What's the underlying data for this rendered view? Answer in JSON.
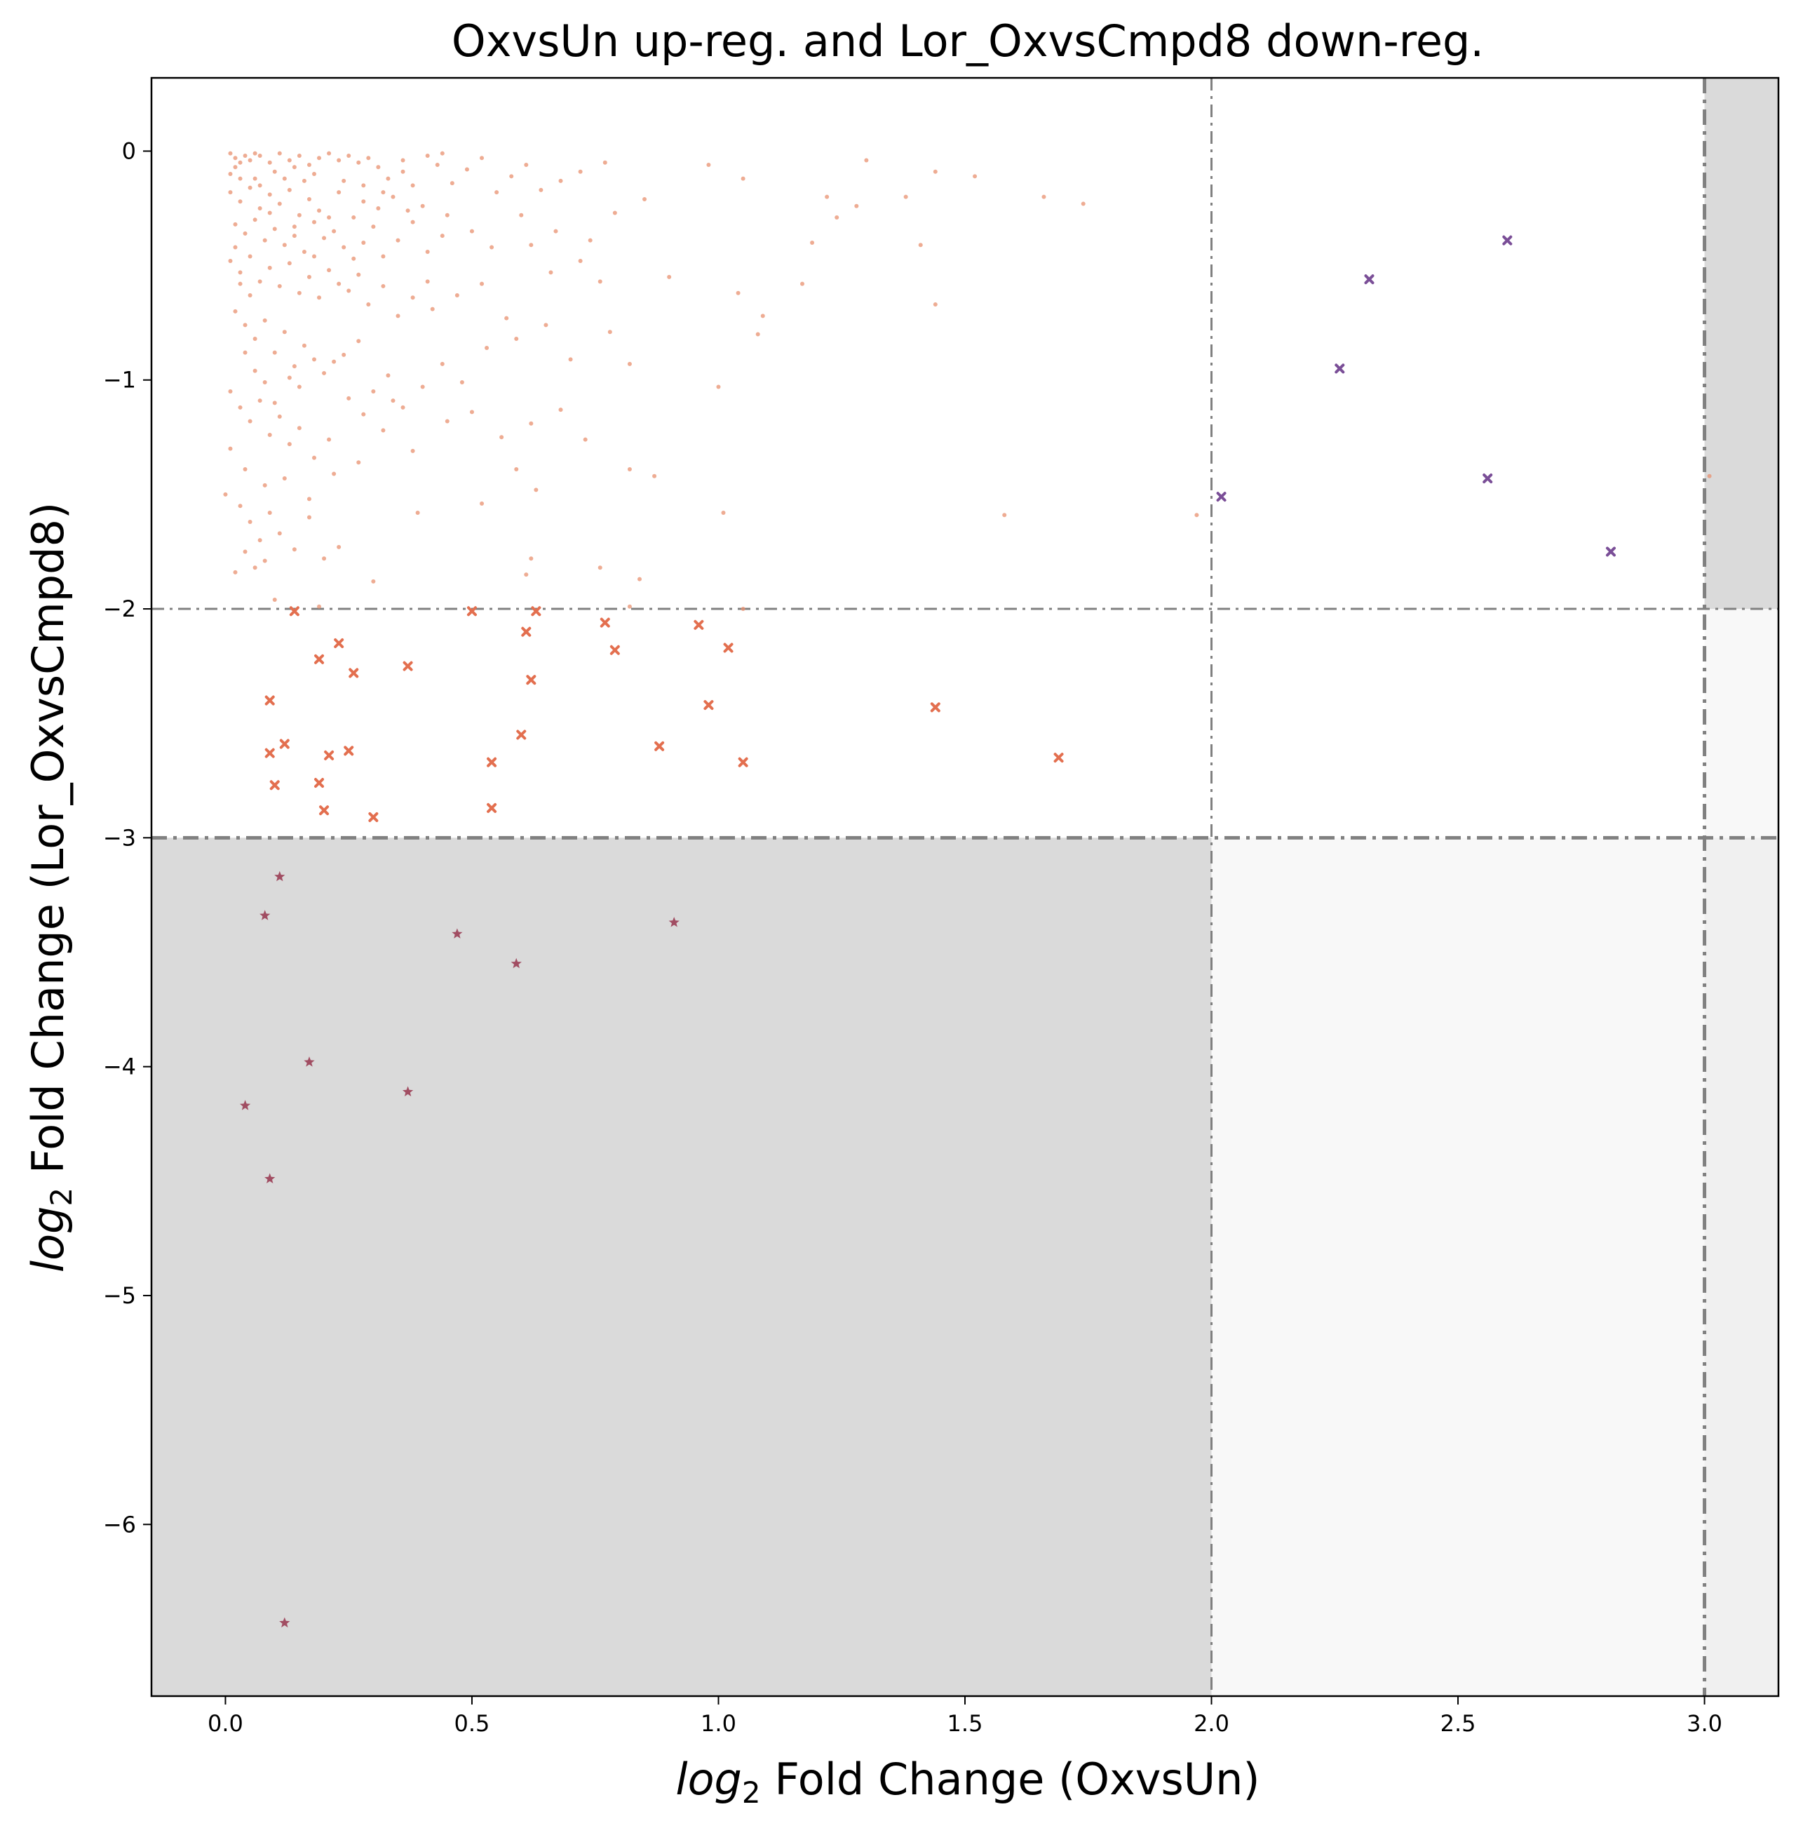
{
  "chart_data": {
    "type": "scatter",
    "title": "OxvsUn up-reg. and Lor_OxvsCmpd8 down-reg.",
    "xlabel": {
      "prefix": "log",
      "sub": "2",
      "rest": " Fold Change (OxvsUn)"
    },
    "ylabel": {
      "prefix": "log",
      "sub": "2",
      "rest": " Fold Change (Lor_OxvsCmpd8)"
    },
    "xlim": [
      -0.15,
      3.15
    ],
    "ylim": [
      -6.75,
      0.32
    ],
    "xticks": [
      0.0,
      0.5,
      1.0,
      1.5,
      2.0,
      2.5,
      3.0
    ],
    "xtick_labels": [
      "0.0",
      "0.5",
      "1.0",
      "1.5",
      "2.0",
      "2.5",
      "3.0"
    ],
    "yticks": [
      0,
      -1,
      -2,
      -3,
      -4,
      -5,
      -6
    ],
    "ytick_labels": [
      "0",
      "−1",
      "−2",
      "−3",
      "−4",
      "−5",
      "−6"
    ],
    "grid": false,
    "legend": "none",
    "thresholds": {
      "vertical": [
        {
          "x": 2.0,
          "style": "thin"
        },
        {
          "x": 3.0,
          "style": "thick"
        }
      ],
      "horizontal": [
        {
          "y": -2.0,
          "style": "thin"
        },
        {
          "y": -3.0,
          "style": "thick"
        }
      ]
    },
    "shaded_regions": [
      {
        "x": [
          -0.15,
          2.0
        ],
        "y": [
          -6.75,
          -3.0
        ],
        "color": "#dadada"
      },
      {
        "x": [
          2.0,
          3.0
        ],
        "y": [
          -6.75,
          -3.0
        ],
        "color": "#f8f8f8"
      },
      {
        "x": [
          3.0,
          3.15
        ],
        "y": [
          -6.75,
          -3.0
        ],
        "color": "#f0f0f0"
      },
      {
        "x": [
          3.0,
          3.15
        ],
        "y": [
          -3.0,
          -2.0
        ],
        "color": "#f8f8f8"
      },
      {
        "x": [
          3.0,
          3.15
        ],
        "y": [
          -2.0,
          0.32
        ],
        "color": "#dadada"
      }
    ],
    "series": [
      {
        "marker": "dot",
        "color": "#e8906f",
        "points": [
          [
            0.01,
            -0.01
          ],
          [
            0.02,
            -0.03
          ],
          [
            0.03,
            -0.05
          ],
          [
            0.04,
            -0.02
          ],
          [
            0.05,
            -0.04
          ],
          [
            0.06,
            -0.01
          ],
          [
            0.02,
            -0.07
          ],
          [
            0.01,
            -0.1
          ],
          [
            0.03,
            -0.12
          ],
          [
            0.07,
            -0.02
          ],
          [
            0.09,
            -0.05
          ],
          [
            0.11,
            -0.01
          ],
          [
            0.13,
            -0.04
          ],
          [
            0.15,
            -0.02
          ],
          [
            0.17,
            -0.06
          ],
          [
            0.19,
            -0.03
          ],
          [
            0.21,
            -0.01
          ],
          [
            0.23,
            -0.04
          ],
          [
            0.25,
            -0.02
          ],
          [
            0.27,
            -0.05
          ],
          [
            0.29,
            -0.03
          ],
          [
            0.31,
            -0.07
          ],
          [
            0.33,
            -0.12
          ],
          [
            0.36,
            -0.09
          ],
          [
            0.38,
            -0.15
          ],
          [
            0.41,
            -0.02
          ],
          [
            0.43,
            -0.06
          ],
          [
            0.46,
            -0.14
          ],
          [
            0.49,
            -0.08
          ],
          [
            0.52,
            -0.03
          ],
          [
            0.55,
            -0.18
          ],
          [
            0.58,
            -0.11
          ],
          [
            0.61,
            -0.06
          ],
          [
            0.64,
            -0.17
          ],
          [
            0.68,
            -0.13
          ],
          [
            0.72,
            -0.09
          ],
          [
            0.77,
            -0.05
          ],
          [
            0.85,
            -0.21
          ],
          [
            0.98,
            -0.06
          ],
          [
            1.05,
            -0.12
          ],
          [
            1.3,
            -0.04
          ],
          [
            1.38,
            -0.2
          ],
          [
            1.44,
            -0.09
          ],
          [
            1.52,
            -0.11
          ],
          [
            1.66,
            -0.2
          ],
          [
            1.74,
            -0.23
          ],
          [
            1.28,
            -0.24
          ],
          [
            1.22,
            -0.2
          ],
          [
            1.24,
            -0.29
          ],
          [
            1.19,
            -0.4
          ],
          [
            0.01,
            -0.18
          ],
          [
            0.03,
            -0.22
          ],
          [
            0.05,
            -0.16
          ],
          [
            0.07,
            -0.25
          ],
          [
            0.09,
            -0.19
          ],
          [
            0.11,
            -0.23
          ],
          [
            0.13,
            -0.17
          ],
          [
            0.15,
            -0.28
          ],
          [
            0.17,
            -0.21
          ],
          [
            0.19,
            -0.26
          ],
          [
            0.02,
            -0.32
          ],
          [
            0.04,
            -0.36
          ],
          [
            0.06,
            -0.3
          ],
          [
            0.08,
            -0.39
          ],
          [
            0.1,
            -0.34
          ],
          [
            0.12,
            -0.41
          ],
          [
            0.14,
            -0.37
          ],
          [
            0.16,
            -0.44
          ],
          [
            0.18,
            -0.31
          ],
          [
            0.2,
            -0.38
          ],
          [
            0.22,
            -0.35
          ],
          [
            0.24,
            -0.42
          ],
          [
            0.26,
            -0.29
          ],
          [
            0.28,
            -0.4
          ],
          [
            0.3,
            -0.33
          ],
          [
            0.32,
            -0.46
          ],
          [
            0.35,
            -0.39
          ],
          [
            0.38,
            -0.31
          ],
          [
            0.41,
            -0.44
          ],
          [
            0.44,
            -0.37
          ],
          [
            0.01,
            -0.48
          ],
          [
            0.03,
            -0.53
          ],
          [
            0.05,
            -0.46
          ],
          [
            0.07,
            -0.57
          ],
          [
            0.09,
            -0.51
          ],
          [
            0.11,
            -0.59
          ],
          [
            0.13,
            -0.49
          ],
          [
            0.15,
            -0.62
          ],
          [
            0.17,
            -0.55
          ],
          [
            0.19,
            -0.64
          ],
          [
            0.21,
            -0.52
          ],
          [
            0.23,
            -0.58
          ],
          [
            0.25,
            -0.61
          ],
          [
            0.27,
            -0.54
          ],
          [
            0.29,
            -0.67
          ],
          [
            0.32,
            -0.59
          ],
          [
            0.35,
            -0.72
          ],
          [
            0.38,
            -0.64
          ],
          [
            0.42,
            -0.69
          ],
          [
            0.47,
            -0.63
          ],
          [
            0.52,
            -0.58
          ],
          [
            0.57,
            -0.73
          ],
          [
            0.62,
            -0.41
          ],
          [
            0.66,
            -0.53
          ],
          [
            0.72,
            -0.48
          ],
          [
            0.76,
            -0.57
          ],
          [
            0.79,
            -0.27
          ],
          [
            0.9,
            -0.55
          ],
          [
            1.09,
            -0.72
          ],
          [
            1.17,
            -0.58
          ],
          [
            0.02,
            -0.7
          ],
          [
            0.04,
            -0.76
          ],
          [
            0.06,
            -0.82
          ],
          [
            0.08,
            -0.74
          ],
          [
            0.1,
            -0.88
          ],
          [
            0.12,
            -0.79
          ],
          [
            0.14,
            -0.94
          ],
          [
            0.16,
            -0.85
          ],
          [
            0.18,
            -0.91
          ],
          [
            0.2,
            -0.97
          ],
          [
            0.22,
            -0.92
          ],
          [
            0.24,
            -0.89
          ],
          [
            0.27,
            -0.83
          ],
          [
            0.3,
            -1.05
          ],
          [
            0.33,
            -0.98
          ],
          [
            0.36,
            -1.12
          ],
          [
            0.4,
            -1.03
          ],
          [
            0.44,
            -0.93
          ],
          [
            0.48,
            -1.01
          ],
          [
            0.53,
            -0.86
          ],
          [
            0.59,
            -0.82
          ],
          [
            0.65,
            -0.76
          ],
          [
            0.7,
            -0.91
          ],
          [
            0.78,
            -0.79
          ],
          [
            0.82,
            -0.93
          ],
          [
            1.0,
            -1.03
          ],
          [
            1.04,
            -0.62
          ],
          [
            1.08,
            -0.8
          ],
          [
            1.41,
            -0.41
          ],
          [
            1.44,
            -0.67
          ],
          [
            0.01,
            -1.05
          ],
          [
            0.03,
            -1.12
          ],
          [
            0.05,
            -1.18
          ],
          [
            0.07,
            -1.09
          ],
          [
            0.09,
            -1.24
          ],
          [
            0.11,
            -1.16
          ],
          [
            0.13,
            -1.28
          ],
          [
            0.15,
            -1.21
          ],
          [
            0.18,
            -1.34
          ],
          [
            0.21,
            -1.26
          ],
          [
            0.01,
            -1.3
          ],
          [
            0.04,
            -1.39
          ],
          [
            0.08,
            -1.46
          ],
          [
            0.12,
            -1.43
          ],
          [
            0.17,
            -1.52
          ],
          [
            0.22,
            -1.41
          ],
          [
            0.27,
            -1.36
          ],
          [
            0.32,
            -1.22
          ],
          [
            0.38,
            -1.31
          ],
          [
            0.45,
            -1.18
          ],
          [
            0.5,
            -1.14
          ],
          [
            0.56,
            -1.25
          ],
          [
            0.62,
            -1.19
          ],
          [
            0.68,
            -1.13
          ],
          [
            0.73,
            -1.26
          ],
          [
            0.82,
            -1.39
          ],
          [
            0.87,
            -1.42
          ],
          [
            1.01,
            -1.58
          ],
          [
            0.59,
            -1.39
          ],
          [
            0.63,
            -1.48
          ],
          [
            0.0,
            -1.5
          ],
          [
            0.03,
            -1.55
          ],
          [
            0.05,
            -1.62
          ],
          [
            0.07,
            -1.7
          ],
          [
            0.09,
            -1.58
          ],
          [
            0.11,
            -1.67
          ],
          [
            0.14,
            -1.74
          ],
          [
            0.17,
            -1.6
          ],
          [
            0.2,
            -1.78
          ],
          [
            0.23,
            -1.73
          ],
          [
            0.02,
            -1.84
          ],
          [
            0.04,
            -1.75
          ],
          [
            0.06,
            -1.82
          ],
          [
            0.08,
            -1.79
          ],
          [
            0.1,
            -1.96
          ],
          [
            0.19,
            -1.99
          ],
          [
            0.3,
            -1.88
          ],
          [
            0.39,
            -1.58
          ],
          [
            0.52,
            -1.54
          ],
          [
            0.62,
            -1.78
          ],
          [
            0.61,
            -1.85
          ],
          [
            0.76,
            -1.82
          ],
          [
            0.84,
            -1.87
          ],
          [
            0.82,
            -1.99
          ],
          [
            1.05,
            -2.0
          ],
          [
            1.58,
            -1.59
          ],
          [
            1.97,
            -1.59
          ],
          [
            3.01,
            -1.42
          ],
          [
            0.03,
            -0.58
          ],
          [
            0.05,
            -0.63
          ],
          [
            0.07,
            -0.15
          ],
          [
            0.09,
            -0.27
          ],
          [
            0.12,
            -0.12
          ],
          [
            0.14,
            -0.33
          ],
          [
            0.16,
            -0.13
          ],
          [
            0.18,
            -0.46
          ],
          [
            0.21,
            -0.29
          ],
          [
            0.23,
            -0.18
          ],
          [
            0.26,
            -0.47
          ],
          [
            0.28,
            -0.22
          ],
          [
            0.31,
            -0.25
          ],
          [
            0.34,
            -0.2
          ],
          [
            0.37,
            -0.26
          ],
          [
            0.4,
            -0.24
          ],
          [
            0.45,
            -0.28
          ],
          [
            0.5,
            -0.35
          ],
          [
            0.54,
            -0.42
          ],
          [
            0.6,
            -0.28
          ],
          [
            0.67,
            -0.35
          ],
          [
            0.74,
            -0.39
          ],
          [
            0.04,
            -0.88
          ],
          [
            0.06,
            -0.96
          ],
          [
            0.08,
            -1.01
          ],
          [
            0.1,
            -1.1
          ],
          [
            0.13,
            -0.99
          ],
          [
            0.15,
            -1.03
          ],
          [
            0.25,
            -1.08
          ],
          [
            0.28,
            -1.15
          ],
          [
            0.34,
            -1.09
          ],
          [
            0.41,
            -0.57
          ],
          [
            0.02,
            -0.42
          ],
          [
            0.06,
            -0.12
          ],
          [
            0.1,
            -0.09
          ],
          [
            0.14,
            -0.07
          ],
          [
            0.18,
            -0.1
          ],
          [
            0.24,
            -0.13
          ],
          [
            0.28,
            -0.15
          ],
          [
            0.32,
            -0.18
          ],
          [
            0.36,
            -0.04
          ],
          [
            0.44,
            -0.01
          ]
        ]
      },
      {
        "marker": "x",
        "color": "#e36f4f",
        "points": [
          [
            0.09,
            -2.4
          ],
          [
            0.09,
            -2.63
          ],
          [
            0.1,
            -2.77
          ],
          [
            0.12,
            -2.59
          ],
          [
            0.14,
            -2.01
          ],
          [
            0.19,
            -2.22
          ],
          [
            0.19,
            -2.76
          ],
          [
            0.2,
            -2.88
          ],
          [
            0.21,
            -2.64
          ],
          [
            0.23,
            -2.15
          ],
          [
            0.25,
            -2.62
          ],
          [
            0.26,
            -2.28
          ],
          [
            0.3,
            -2.91
          ],
          [
            0.37,
            -2.25
          ],
          [
            0.5,
            -2.01
          ],
          [
            0.54,
            -2.67
          ],
          [
            0.54,
            -2.87
          ],
          [
            0.6,
            -2.55
          ],
          [
            0.61,
            -2.1
          ],
          [
            0.62,
            -2.31
          ],
          [
            0.63,
            -2.01
          ],
          [
            0.77,
            -2.06
          ],
          [
            0.79,
            -2.18
          ],
          [
            0.88,
            -2.6
          ],
          [
            0.96,
            -2.07
          ],
          [
            0.98,
            -2.42
          ],
          [
            1.02,
            -2.17
          ],
          [
            1.05,
            -2.67
          ],
          [
            1.44,
            -2.43
          ],
          [
            1.69,
            -2.65
          ]
        ]
      },
      {
        "marker": "x",
        "color": "#7a4e97",
        "points": [
          [
            2.02,
            -1.51
          ],
          [
            2.26,
            -0.95
          ],
          [
            2.32,
            -0.56
          ],
          [
            2.56,
            -1.43
          ],
          [
            2.6,
            -0.39
          ],
          [
            2.81,
            -1.75
          ]
        ]
      },
      {
        "marker": "star",
        "color": "#a14d62",
        "points": [
          [
            0.04,
            -4.17
          ],
          [
            0.08,
            -3.34
          ],
          [
            0.09,
            -4.49
          ],
          [
            0.11,
            -3.17
          ],
          [
            0.12,
            -6.43
          ],
          [
            0.17,
            -3.98
          ],
          [
            0.37,
            -4.11
          ],
          [
            0.47,
            -3.42
          ],
          [
            0.59,
            -3.55
          ],
          [
            0.91,
            -3.37
          ]
        ]
      }
    ]
  }
}
